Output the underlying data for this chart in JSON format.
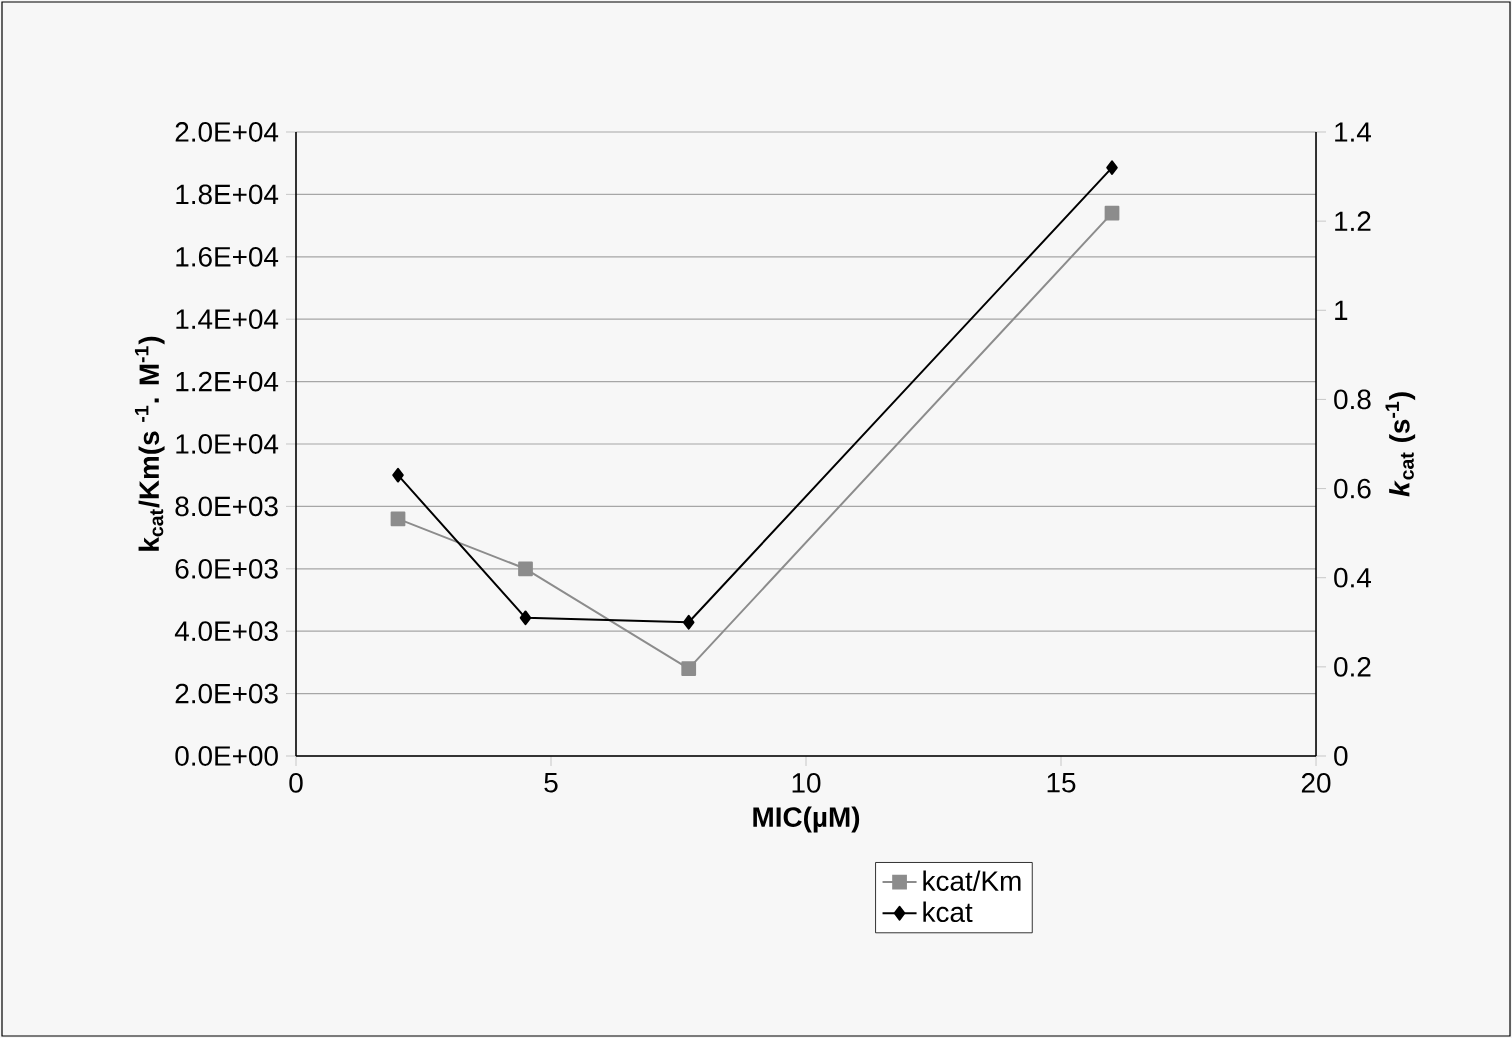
{
  "chart_data": {
    "type": "line",
    "xlabel": "MIC(µM)",
    "ylabel": "k$_{cat}$/Km(s $^{-1}$. M$^{-1}$)",
    "y2label": "*k*$_{cat}$ (s$^{-1}$)",
    "xlim": [
      0,
      20
    ],
    "xticks": [
      0,
      5,
      10,
      15,
      20
    ],
    "ylim": [
      0,
      20000
    ],
    "yticks": [
      {
        "value": 0,
        "label": "0.0E+00"
      },
      {
        "value": 2000,
        "label": "2.0E+03"
      },
      {
        "value": 4000,
        "label": "4.0E+03"
      },
      {
        "value": 6000,
        "label": "6.0E+03"
      },
      {
        "value": 8000,
        "label": "8.0E+03"
      },
      {
        "value": 10000,
        "label": "1.0E+04"
      },
      {
        "value": 12000,
        "label": "1.2E+04"
      },
      {
        "value": 14000,
        "label": "1.4E+04"
      },
      {
        "value": 16000,
        "label": "1.6E+04"
      },
      {
        "value": 18000,
        "label": "1.8E+04"
      },
      {
        "value": 20000,
        "label": "2.0E+04"
      }
    ],
    "y2lim": [
      0,
      1.4
    ],
    "y2ticks": [
      0,
      0.2,
      0.4,
      0.6,
      0.8,
      1,
      1.2,
      1.4
    ],
    "grid": "y",
    "legend": "bottom",
    "series": [
      {
        "name": "kcat/Km",
        "color": "#8c8c8c",
        "marker": "square",
        "x": [
          2,
          4.5,
          7.7,
          16
        ],
        "values": [
          7600,
          6000,
          2800,
          17400
        ]
      },
      {
        "name": "kcat",
        "color": "#000000",
        "marker": "diamond",
        "axis": "y2",
        "x": [
          2,
          4.5,
          7.7,
          16
        ],
        "values": [
          0.63,
          0.31,
          0.3,
          1.32
        ]
      }
    ]
  }
}
